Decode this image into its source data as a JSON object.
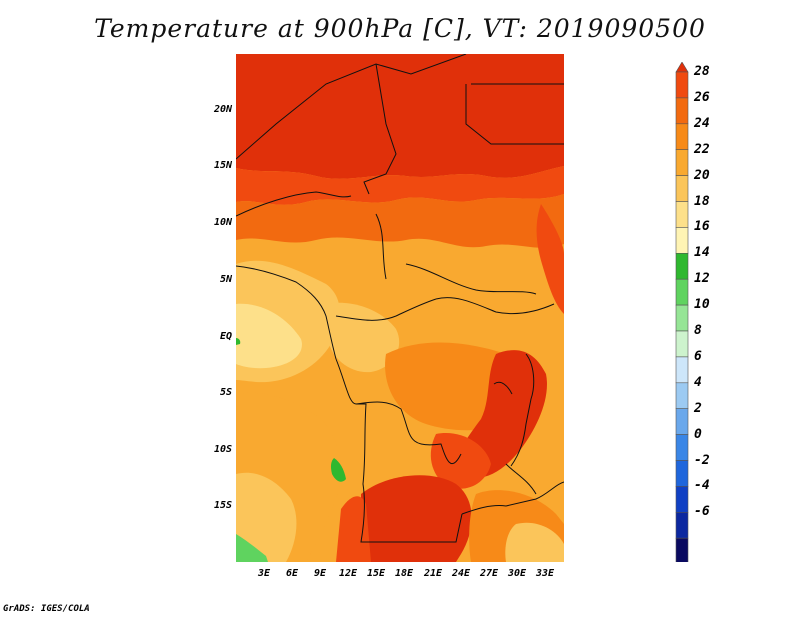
{
  "title": "Temperature at 900hPa [C], VT: 2019090500",
  "credit": "GrADS: IGES/COLA",
  "lat_ticks": [
    "20N",
    "15N",
    "10N",
    "5N",
    "EQ",
    "5S",
    "10S",
    "15S"
  ],
  "lon_ticks": [
    "3E",
    "6E",
    "9E",
    "12E",
    "15E",
    "18E",
    "21E",
    "24E",
    "27E",
    "30E",
    "33E"
  ],
  "colorbar": {
    "labels": [
      "28",
      "26",
      "24",
      "22",
      "20",
      "18",
      "16",
      "14",
      "12",
      "10",
      "8",
      "6",
      "4",
      "2",
      "0",
      "-2",
      "-4",
      "-6"
    ],
    "colors": [
      "#e0300a",
      "#f04a10",
      "#f26a10",
      "#f78a18",
      "#f9a930",
      "#fbc55a",
      "#fde08a",
      "#fff4b4",
      "#2fb82f",
      "#5fd35f",
      "#96e596",
      "#cdf3cd",
      "#cde6fa",
      "#9ccaf2",
      "#6aa8ec",
      "#3a86e6",
      "#1f66dc",
      "#1040c4",
      "#0c28a0",
      "#0a0a60",
      "#d7d7ff"
    ]
  }
}
